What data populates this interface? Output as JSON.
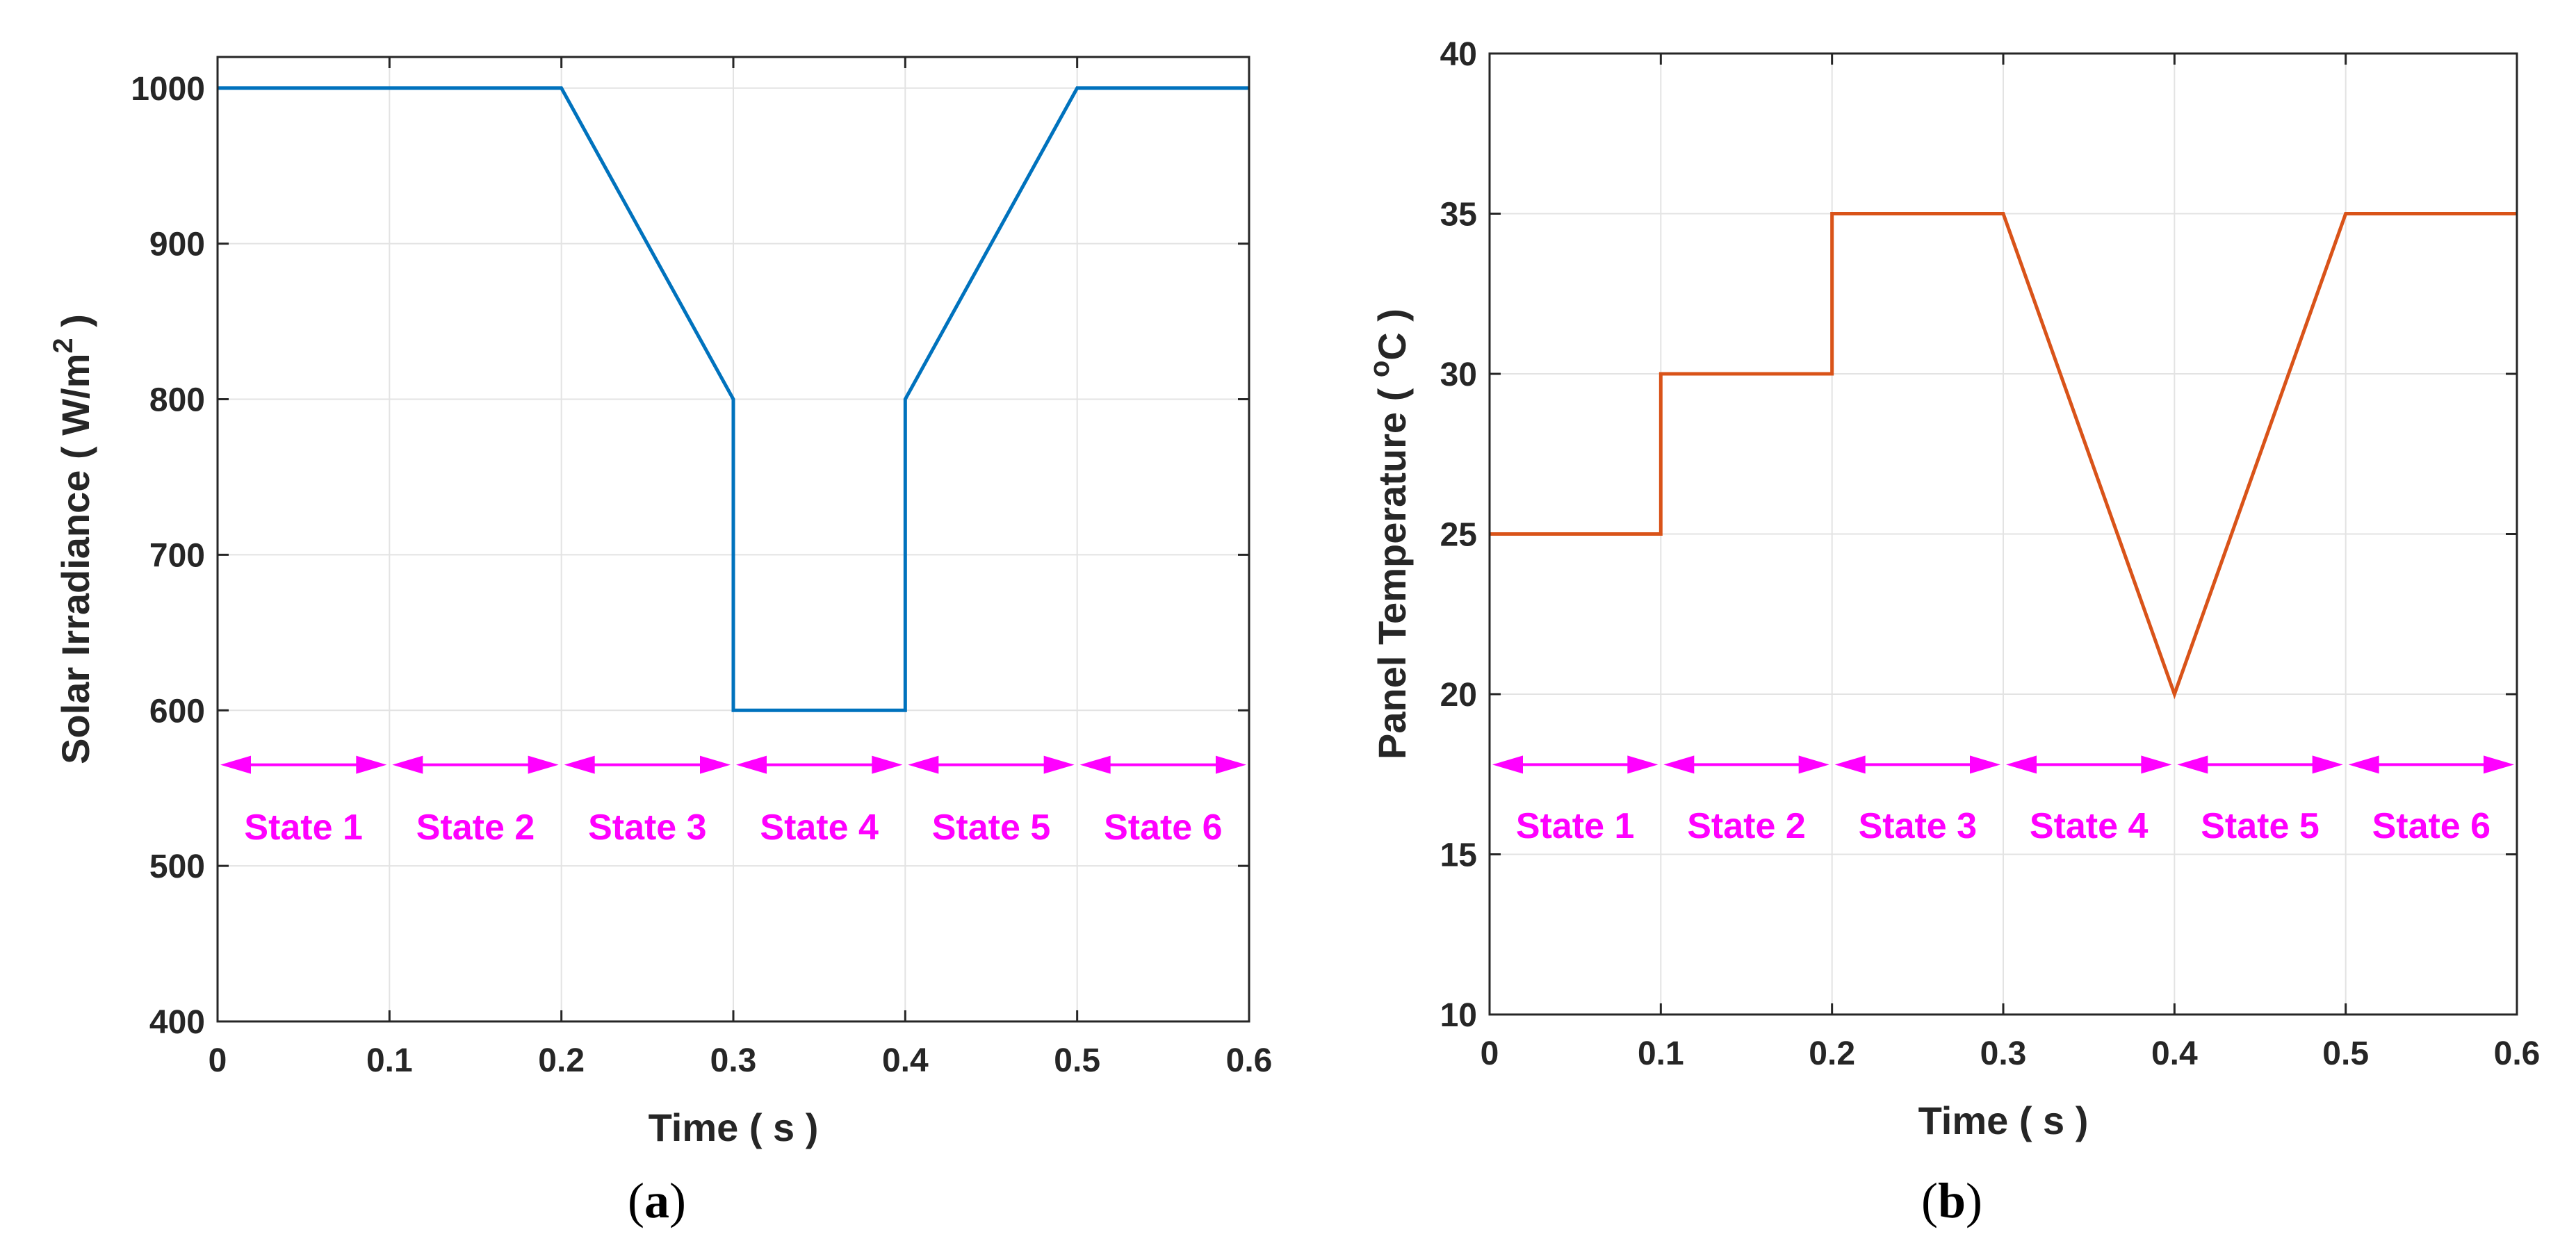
{
  "chart_data": [
    {
      "panel": "(a)",
      "type": "line",
      "caption": {
        "open": "(",
        "letter": "a",
        "close": ")"
      },
      "xlabel": "Time ( s )",
      "ylabel": {
        "prefix": "Solar Irradiance ( W/m",
        "superscript": "2",
        "suffix": " )"
      },
      "xlim": [
        0,
        0.6
      ],
      "ylim": [
        400,
        1000
      ],
      "ymax_plot": 1020,
      "xticks": [
        0,
        0.1,
        0.2,
        0.3,
        0.4,
        0.5,
        0.6
      ],
      "xtick_labels": [
        "0",
        "0.1",
        "0.2",
        "0.3",
        "0.4",
        "0.5",
        "0.6"
      ],
      "yticks": [
        400,
        500,
        600,
        700,
        800,
        900,
        1000
      ],
      "ytick_labels": [
        "400",
        "500",
        "600",
        "700",
        "800",
        "900",
        "1000"
      ],
      "grid": true,
      "series": [
        {
          "color": "#0072bd",
          "x": [
            0,
            0.2,
            0.3,
            0.3,
            0.4,
            0.4,
            0.5,
            0.6
          ],
          "y": [
            1000,
            1000,
            800,
            600,
            600,
            800,
            1000,
            1000
          ]
        }
      ],
      "annotations": {
        "color": "#ff00ff",
        "arrow_y": 565,
        "label_y": 525,
        "states": [
          {
            "label": "State 1",
            "x_start": 0,
            "x_end": 0.1
          },
          {
            "label": "State 2",
            "x_start": 0.1,
            "x_end": 0.2
          },
          {
            "label": "State 3",
            "x_start": 0.2,
            "x_end": 0.3
          },
          {
            "label": "State 4",
            "x_start": 0.3,
            "x_end": 0.4
          },
          {
            "label": "State 5",
            "x_start": 0.4,
            "x_end": 0.5
          },
          {
            "label": "State 6",
            "x_start": 0.5,
            "x_end": 0.6
          }
        ]
      }
    },
    {
      "panel": "(b)",
      "type": "line",
      "caption": {
        "open": "(",
        "letter": "b",
        "close": ")"
      },
      "xlabel": "Time ( s )",
      "ylabel": {
        "prefix": "Panel Temperature ( ",
        "superscript": "o",
        "suffix": "C )"
      },
      "xlim": [
        0,
        0.6
      ],
      "ylim": [
        10,
        40
      ],
      "ymax_plot": 40,
      "xticks": [
        0,
        0.1,
        0.2,
        0.3,
        0.4,
        0.5,
        0.6
      ],
      "xtick_labels": [
        "0",
        "0.1",
        "0.2",
        "0.3",
        "0.4",
        "0.5",
        "0.6"
      ],
      "yticks": [
        10,
        15,
        20,
        25,
        30,
        35,
        40
      ],
      "ytick_labels": [
        "10",
        "15",
        "20",
        "25",
        "30",
        "35",
        "40"
      ],
      "grid": true,
      "series": [
        {
          "color": "#d95319",
          "x": [
            0,
            0.1,
            0.1,
            0.2,
            0.2,
            0.3,
            0.4,
            0.5,
            0.6
          ],
          "y": [
            25,
            25,
            30,
            30,
            35,
            35,
            20,
            35,
            35
          ]
        }
      ],
      "annotations": {
        "color": "#ff00ff",
        "arrow_y": 17.8,
        "label_y": 15.9,
        "states": [
          {
            "label": "State 1",
            "x_start": 0,
            "x_end": 0.1
          },
          {
            "label": "State 2",
            "x_start": 0.1,
            "x_end": 0.2
          },
          {
            "label": "State 3",
            "x_start": 0.2,
            "x_end": 0.3
          },
          {
            "label": "State 4",
            "x_start": 0.3,
            "x_end": 0.4
          },
          {
            "label": "State 5",
            "x_start": 0.4,
            "x_end": 0.5
          },
          {
            "label": "State 6",
            "x_start": 0.5,
            "x_end": 0.6
          }
        ]
      }
    }
  ]
}
